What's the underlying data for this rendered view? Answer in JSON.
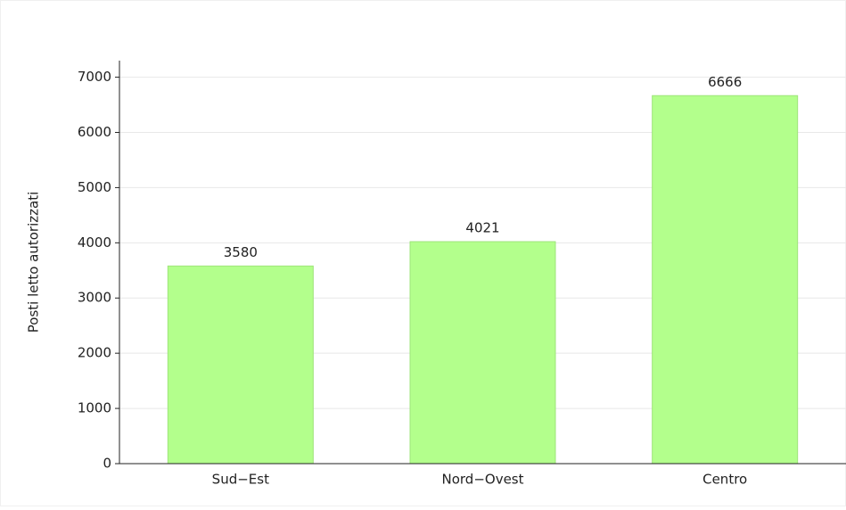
{
  "chart_data": {
    "type": "bar",
    "y_label": "Posti letto autorizzati",
    "categories": [
      "Sud−Est",
      "Nord−Ovest",
      "Centro"
    ],
    "values": [
      3580,
      4021,
      6666
    ],
    "color": "#b3ff8c",
    "ylim": [
      0,
      7300
    ],
    "yticks": [
      0,
      1000,
      2000,
      3000,
      4000,
      5000,
      6000,
      7000
    ],
    "grid": true
  }
}
